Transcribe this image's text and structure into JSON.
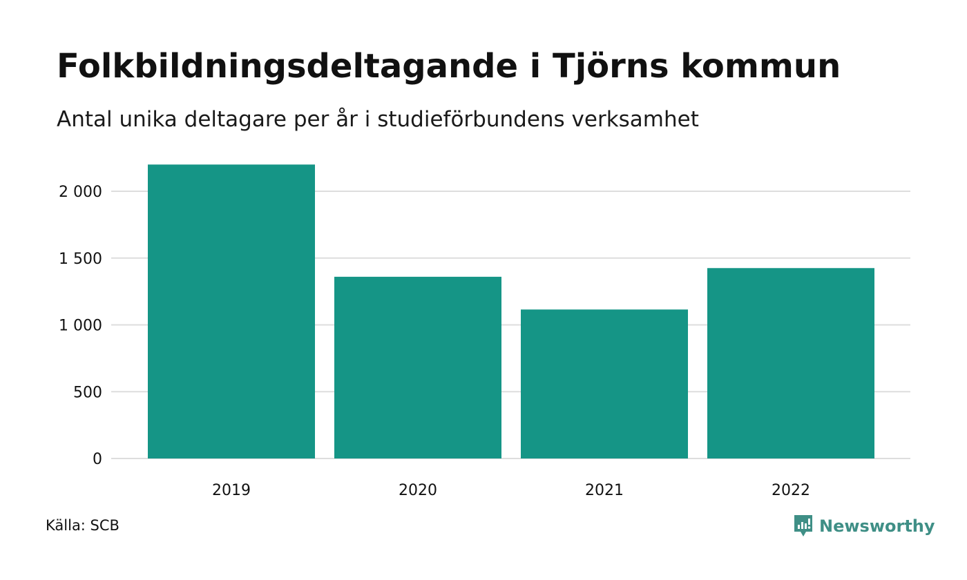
{
  "header": {
    "title": "Folkbildningsdeltagande i Tjörns kommun",
    "subtitle": "Antal unika deltagare per år i studieförbundens verksamhet"
  },
  "footer": {
    "source": "Källa: SCB",
    "brand": "Newsworthy",
    "brand_icon": "newsworthy-logo-icon"
  },
  "colors": {
    "bar": "#159586",
    "grid": "#dddddd",
    "brand": "#3f8f86",
    "text": "#111111"
  },
  "chart_data": {
    "type": "bar",
    "title": "Folkbildningsdeltagande i Tjörns kommun",
    "subtitle": "Antal unika deltagare per år i studieförbundens verksamhet",
    "categories": [
      "2019",
      "2020",
      "2021",
      "2022"
    ],
    "values": [
      2200,
      1360,
      1115,
      1425
    ],
    "xlabel": "",
    "ylabel": "",
    "ylim": [
      0,
      2200
    ],
    "yticks": [
      0,
      500,
      1000,
      1500,
      2000
    ],
    "ytick_labels": [
      "0",
      "500",
      "1 000",
      "1 500",
      "2 000"
    ],
    "grid": true,
    "legend": false
  }
}
